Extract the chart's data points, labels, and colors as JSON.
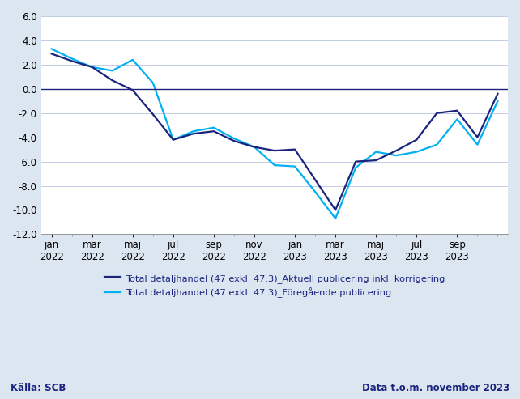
{
  "source_text": "Källa: SCB",
  "data_text": "Data t.o.m. november 2023",
  "x_tick_labels": [
    "jan\n2022",
    "mar\n2022",
    "maj\n2022",
    "jul\n2022",
    "sep\n2022",
    "nov\n2022",
    "jan\n2023",
    "mar\n2023",
    "maj\n2023",
    "jul\n2023",
    "sep\n2023"
  ],
  "x_tick_positions": [
    0,
    2,
    4,
    6,
    8,
    10,
    12,
    14,
    16,
    18,
    20
  ],
  "aktuell": [
    2.9,
    2.3,
    1.8,
    0.7,
    -0.1,
    -2.1,
    -4.2,
    -3.7,
    -3.5,
    -4.3,
    -4.8,
    -5.1,
    -5.0,
    -7.5,
    -10.0,
    -6.0,
    -5.9,
    -5.1,
    -4.2,
    -2.0,
    -1.8,
    -4.0,
    -0.4
  ],
  "foregaende": [
    3.3,
    2.5,
    1.8,
    1.5,
    2.4,
    0.5,
    -4.2,
    -3.5,
    -3.2,
    -4.1,
    -4.8,
    -6.3,
    -6.4,
    -8.5,
    -10.7,
    -6.5,
    -5.2,
    -5.5,
    -5.2,
    -4.6,
    -2.5,
    -4.6,
    -1.0
  ],
  "ylim": [
    -12.0,
    6.0
  ],
  "yticks": [
    -12.0,
    -10.0,
    -8.0,
    -6.0,
    -4.0,
    -2.0,
    0.0,
    2.0,
    4.0,
    6.0
  ],
  "color_aktuell": "#1a237e",
  "color_foregaende": "#00b0f0",
  "legend_label_aktuell": "Total detaljhandel (47 exkl. 47.3)_Aktuell publicering inkl. korrigering",
  "legend_label_foregaende": "Total detaljhandel (47 exkl. 47.3)_Föregående publicering",
  "background_color": "#dce6f1",
  "plot_background": "#ffffff",
  "grid_color": "#b8c4e0",
  "zeroline_color": "#1a237e",
  "linewidth": 1.6,
  "tick_fontsize": 8.5,
  "legend_fontsize": 8.2,
  "footer_fontsize": 8.5
}
